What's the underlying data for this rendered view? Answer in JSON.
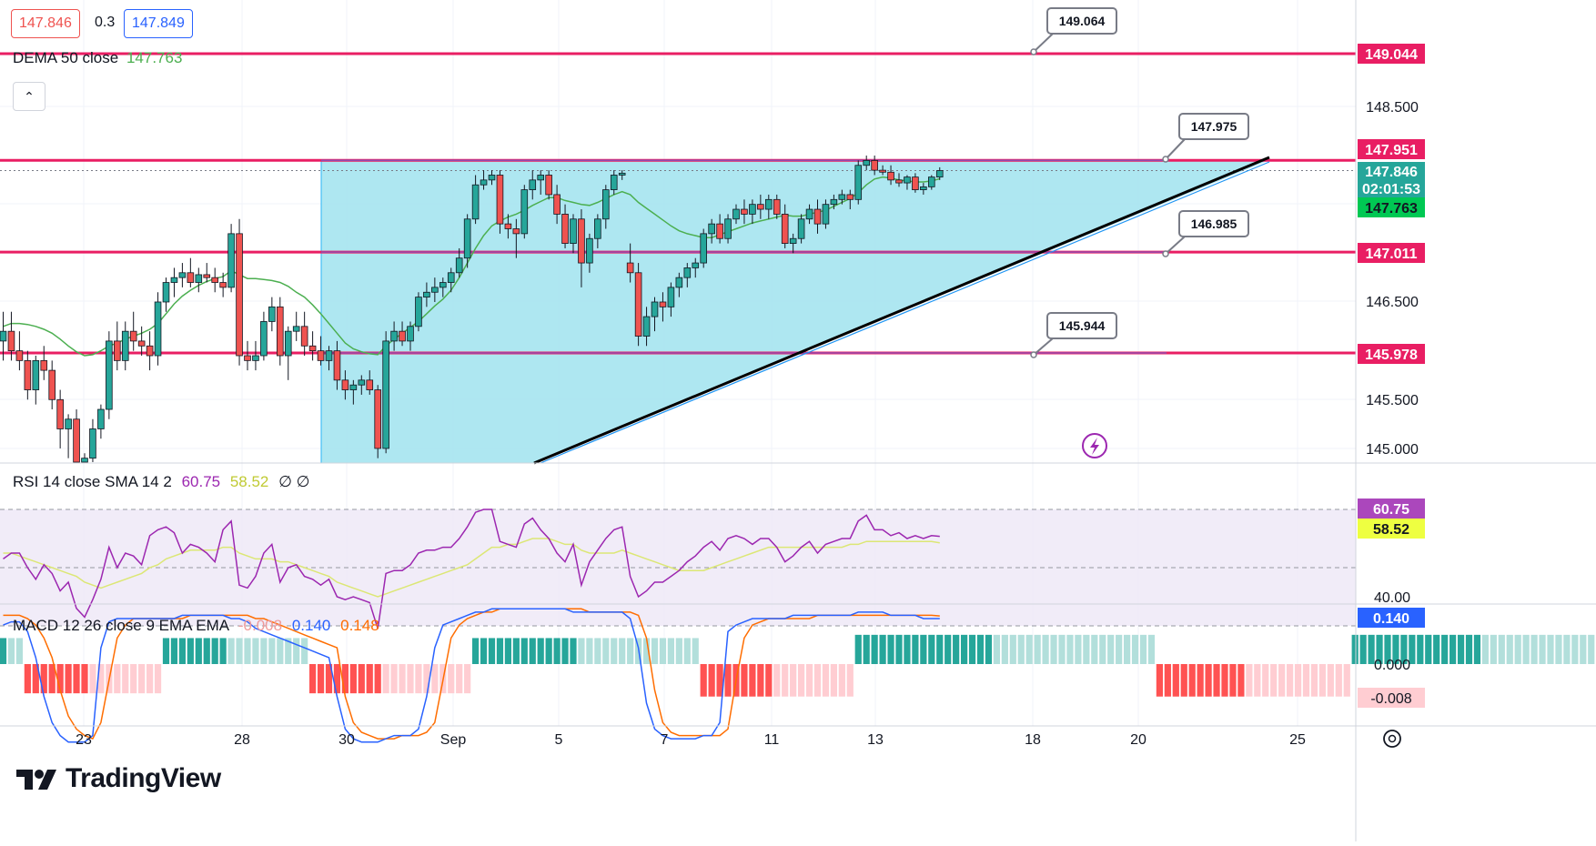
{
  "header": {
    "bid": "147.846",
    "spread": "0.3",
    "ask": "147.849",
    "dema_label": "DEMA 50 close",
    "dema_value": "147.763",
    "collapse_glyph": "⌃"
  },
  "colors": {
    "up": "#26a69a",
    "down": "#ef5350",
    "level": "#e91e63",
    "fill": "#a5e4ef",
    "dema": "#4caf50",
    "rsi": "#9c27b0",
    "rsi_ma": "#dce775",
    "macd": "#2962ff",
    "signal": "#ff6d00"
  },
  "price_axis": {
    "ticks": [
      "148.500",
      "146.500",
      "145.500",
      "145.000"
    ],
    "labels": [
      {
        "text": "149.044",
        "kind": "level"
      },
      {
        "text": "147.951",
        "kind": "level"
      },
      {
        "text": "147.846",
        "kind": "last"
      },
      {
        "text": "02:01:53",
        "kind": "countdown"
      },
      {
        "text": "147.763",
        "kind": "dema"
      },
      {
        "text": "147.011",
        "kind": "level"
      },
      {
        "text": "145.978",
        "kind": "level"
      }
    ]
  },
  "callouts": [
    "149.064",
    "147.975",
    "146.985",
    "145.944"
  ],
  "rsi_panel": {
    "legend": "RSI 14 close SMA 14 2",
    "rsi_value": "60.75",
    "ma_value": "58.52",
    "extra": "∅ ∅",
    "tick": "40.00",
    "rsi_label": "60.75",
    "ma_label": "58.52"
  },
  "macd_panel": {
    "legend": "MACD 12 26 close 9 EMA EMA",
    "hist_value": "-0.008",
    "macd_value": "0.140",
    "signal_value": "0.148",
    "tick": "0.000",
    "macd_label": "0.140",
    "hist_label": "-0.008"
  },
  "time_axis": [
    "23",
    "28",
    "30",
    "Sep",
    "5",
    "7",
    "11",
    "13",
    "18",
    "20",
    "25"
  ],
  "branding": {
    "name": "TradingView"
  },
  "icons": {
    "lightning": "lightning-icon",
    "settings": "settings-icon",
    "logo": "tradingview-logo-icon"
  },
  "chart_data": {
    "type": "candlestick",
    "symbol_pair_levels": {
      "horizontal_levels": [
        149.044,
        147.951,
        147.011,
        145.978
      ],
      "trend_apex": 147.951
    },
    "candles": [
      [
        146.1,
        146.4,
        145.9,
        146.2
      ],
      [
        146.2,
        146.4,
        145.9,
        146.0
      ],
      [
        146.0,
        146.2,
        145.8,
        145.9
      ],
      [
        145.9,
        146.0,
        145.5,
        145.6
      ],
      [
        145.6,
        145.95,
        145.45,
        145.9
      ],
      [
        145.9,
        146.05,
        145.7,
        145.8
      ],
      [
        145.8,
        145.9,
        145.4,
        145.5
      ],
      [
        145.5,
        145.6,
        145.0,
        145.2
      ],
      [
        145.2,
        145.35,
        144.9,
        145.3
      ],
      [
        145.3,
        145.4,
        144.6,
        144.8
      ],
      [
        144.8,
        144.95,
        144.5,
        144.9
      ],
      [
        144.9,
        145.3,
        144.8,
        145.2
      ],
      [
        145.2,
        145.45,
        145.1,
        145.4
      ],
      [
        145.4,
        146.2,
        145.3,
        146.1
      ],
      [
        146.1,
        146.3,
        145.8,
        145.9
      ],
      [
        145.9,
        146.3,
        145.8,
        146.2
      ],
      [
        146.2,
        146.4,
        146.0,
        146.1
      ],
      [
        146.1,
        146.25,
        145.95,
        146.05
      ],
      [
        146.05,
        146.2,
        145.8,
        145.95
      ],
      [
        145.95,
        146.6,
        145.85,
        146.5
      ],
      [
        146.5,
        146.75,
        146.4,
        146.7
      ],
      [
        146.7,
        146.85,
        146.55,
        146.75
      ],
      [
        146.75,
        146.9,
        146.65,
        146.8
      ],
      [
        146.8,
        146.95,
        146.65,
        146.7
      ],
      [
        146.7,
        146.85,
        146.6,
        146.78
      ],
      [
        146.78,
        146.9,
        146.7,
        146.75
      ],
      [
        146.75,
        146.85,
        146.6,
        146.7
      ],
      [
        146.7,
        146.8,
        146.55,
        146.65
      ],
      [
        146.65,
        147.3,
        146.6,
        147.2
      ],
      [
        147.2,
        147.35,
        145.85,
        145.95
      ],
      [
        145.95,
        146.1,
        145.8,
        145.9
      ],
      [
        145.9,
        146.1,
        145.8,
        145.95
      ],
      [
        145.95,
        146.4,
        145.9,
        146.3
      ],
      [
        146.3,
        146.55,
        146.2,
        146.45
      ],
      [
        146.45,
        146.55,
        145.85,
        145.95
      ],
      [
        145.95,
        146.25,
        145.7,
        146.2
      ],
      [
        146.2,
        146.4,
        146.1,
        146.25
      ],
      [
        146.25,
        146.4,
        145.95,
        146.05
      ],
      [
        146.05,
        146.2,
        145.9,
        146.0
      ],
      [
        146.0,
        146.15,
        145.85,
        145.9
      ],
      [
        145.9,
        146.05,
        145.8,
        146.0
      ],
      [
        146.0,
        146.1,
        145.6,
        145.7
      ],
      [
        145.7,
        145.8,
        145.5,
        145.6
      ],
      [
        145.6,
        145.7,
        145.45,
        145.65
      ],
      [
        145.65,
        145.75,
        145.55,
        145.7
      ],
      [
        145.7,
        145.8,
        145.55,
        145.6
      ],
      [
        145.6,
        145.65,
        144.9,
        145.0
      ],
      [
        145.0,
        146.2,
        144.95,
        146.1
      ],
      [
        146.1,
        146.3,
        146.0,
        146.2
      ],
      [
        146.2,
        146.3,
        146.05,
        146.1
      ],
      [
        146.1,
        146.3,
        146.0,
        146.25
      ],
      [
        146.25,
        146.6,
        146.2,
        146.55
      ],
      [
        146.55,
        146.7,
        146.45,
        146.6
      ],
      [
        146.6,
        146.75,
        146.5,
        146.65
      ],
      [
        146.65,
        146.75,
        146.55,
        146.7
      ],
      [
        146.7,
        146.85,
        146.6,
        146.8
      ],
      [
        146.8,
        147.05,
        146.75,
        146.95
      ],
      [
        146.95,
        147.4,
        146.85,
        147.35
      ],
      [
        147.35,
        147.8,
        147.3,
        147.7
      ],
      [
        147.7,
        147.85,
        147.65,
        147.75
      ],
      [
        147.75,
        147.85,
        147.7,
        147.8
      ],
      [
        147.8,
        147.85,
        147.2,
        147.3
      ],
      [
        147.3,
        147.4,
        147.15,
        147.25
      ],
      [
        147.25,
        147.35,
        146.95,
        147.2
      ],
      [
        147.2,
        147.7,
        147.15,
        147.65
      ],
      [
        147.65,
        147.85,
        147.55,
        147.75
      ],
      [
        147.75,
        147.85,
        147.6,
        147.8
      ],
      [
        147.8,
        147.85,
        147.55,
        147.6
      ],
      [
        147.6,
        147.7,
        147.3,
        147.4
      ],
      [
        147.4,
        147.5,
        147.05,
        147.1
      ],
      [
        147.1,
        147.4,
        147.0,
        147.35
      ],
      [
        147.35,
        147.45,
        146.65,
        146.9
      ],
      [
        146.9,
        147.2,
        146.8,
        147.15
      ],
      [
        147.15,
        147.4,
        147.05,
        147.35
      ],
      [
        147.35,
        147.7,
        147.25,
        147.65
      ],
      [
        147.65,
        147.85,
        147.6,
        147.8
      ],
      [
        147.8,
        147.85,
        147.75,
        147.82
      ],
      [
        146.9,
        147.1,
        146.7,
        146.8
      ],
      [
        146.8,
        146.9,
        146.05,
        146.15
      ],
      [
        146.15,
        146.45,
        146.05,
        146.35
      ],
      [
        146.35,
        146.55,
        146.2,
        146.5
      ],
      [
        146.5,
        146.6,
        146.3,
        146.45
      ],
      [
        146.45,
        146.7,
        146.35,
        146.65
      ],
      [
        146.65,
        146.8,
        146.55,
        146.75
      ],
      [
        146.75,
        146.9,
        146.65,
        146.85
      ],
      [
        146.85,
        146.95,
        146.75,
        146.9
      ],
      [
        146.9,
        147.25,
        146.85,
        147.2
      ],
      [
        147.2,
        147.35,
        147.1,
        147.3
      ],
      [
        147.3,
        147.4,
        147.1,
        147.15
      ],
      [
        147.15,
        147.4,
        147.1,
        147.35
      ],
      [
        147.35,
        147.5,
        147.3,
        147.45
      ],
      [
        147.45,
        147.55,
        147.3,
        147.4
      ],
      [
        147.4,
        147.55,
        147.3,
        147.5
      ],
      [
        147.5,
        147.6,
        147.35,
        147.45
      ],
      [
        147.45,
        147.6,
        147.35,
        147.55
      ],
      [
        147.55,
        147.6,
        147.35,
        147.4
      ],
      [
        147.4,
        147.5,
        147.05,
        147.1
      ],
      [
        147.1,
        147.2,
        147.0,
        147.15
      ],
      [
        147.15,
        147.4,
        147.1,
        147.35
      ],
      [
        147.35,
        147.5,
        147.3,
        147.45
      ],
      [
        147.45,
        147.55,
        147.2,
        147.3
      ],
      [
        147.3,
        147.55,
        147.25,
        147.5
      ],
      [
        147.5,
        147.6,
        147.45,
        147.55
      ],
      [
        147.55,
        147.65,
        147.5,
        147.6
      ],
      [
        147.6,
        147.65,
        147.45,
        147.55
      ],
      [
        147.55,
        147.95,
        147.5,
        147.9
      ],
      [
        147.9,
        148.0,
        147.85,
        147.95
      ],
      [
        147.95,
        148.0,
        147.8,
        147.85
      ],
      [
        147.85,
        147.9,
        147.8,
        147.83
      ],
      [
        147.83,
        147.9,
        147.7,
        147.75
      ],
      [
        147.75,
        147.82,
        147.68,
        147.72
      ],
      [
        147.72,
        147.8,
        147.65,
        147.78
      ],
      [
        147.78,
        147.82,
        147.62,
        147.65
      ],
      [
        147.65,
        147.72,
        147.6,
        147.68
      ],
      [
        147.68,
        147.8,
        147.65,
        147.78
      ],
      [
        147.78,
        147.88,
        147.75,
        147.846
      ]
    ],
    "dema": [
      146.25,
      146.28,
      146.28,
      146.27,
      146.25,
      146.22,
      146.18,
      146.12,
      146.05,
      145.99,
      145.95,
      145.96,
      146.0,
      146.05,
      146.08,
      146.12,
      146.15,
      146.18,
      146.22,
      146.28,
      146.38,
      146.48,
      146.56,
      146.62,
      146.67,
      146.71,
      146.74,
      146.76,
      146.82,
      146.78,
      146.74,
      146.74,
      146.73,
      146.72,
      146.7,
      146.66,
      146.6,
      146.55,
      146.47,
      146.38,
      146.28,
      146.18,
      146.08,
      146.02,
      145.99,
      145.97,
      145.96,
      146.05,
      146.12,
      146.18,
      146.24,
      146.3,
      146.38,
      146.46,
      146.53,
      146.62,
      146.75,
      146.9,
      147.05,
      147.18,
      147.28,
      147.33,
      147.37,
      147.4,
      147.44,
      147.49,
      147.53,
      147.57,
      147.57,
      147.54,
      147.52,
      147.5,
      147.49,
      147.52,
      147.56,
      147.6,
      147.63,
      147.6,
      147.52,
      147.46,
      147.4,
      147.34,
      147.28,
      147.23,
      147.2,
      147.18,
      147.16,
      147.16,
      147.19,
      147.22,
      147.25,
      147.28,
      147.31,
      147.33,
      147.35,
      147.37,
      147.39,
      147.38,
      147.38,
      147.4,
      147.42,
      147.44,
      147.48,
      147.52,
      147.56,
      147.62,
      147.7,
      147.76,
      147.78,
      147.77,
      147.75,
      147.74,
      147.73,
      147.73,
      147.74,
      147.763
    ],
    "rsi": [
      53,
      55,
      55,
      50,
      46,
      51,
      48,
      42,
      45,
      36,
      33,
      39,
      46,
      57,
      50,
      55,
      54,
      51,
      61,
      63,
      64,
      62,
      55,
      58,
      57,
      55,
      52,
      63,
      66,
      44,
      43,
      47,
      55,
      58,
      45,
      50,
      51,
      47,
      46,
      44,
      46,
      40,
      39,
      40,
      39,
      38,
      29,
      48,
      49,
      49,
      51,
      55,
      56,
      56,
      57,
      57,
      60,
      64,
      69,
      70,
      70,
      59,
      58,
      57,
      65,
      67,
      63,
      60,
      55,
      52,
      58,
      44,
      52,
      56,
      60,
      63,
      64,
      47,
      40,
      42,
      45,
      45,
      47,
      49,
      52,
      54,
      57,
      59,
      56,
      60,
      61,
      60,
      58,
      60,
      60,
      57,
      52,
      54,
      57,
      59,
      55,
      58,
      59,
      60,
      60,
      66,
      68,
      63,
      63,
      61,
      62,
      60,
      61,
      60,
      61,
      60.75
    ],
    "rsi_ma": [
      55,
      55,
      54,
      53,
      52,
      51,
      50,
      49,
      48,
      47,
      45,
      44,
      43,
      44,
      45,
      46,
      47,
      48,
      50,
      51,
      53,
      54,
      55,
      56,
      56,
      56,
      56,
      57,
      57,
      55,
      54,
      53,
      53,
      53,
      52,
      52,
      51,
      50,
      49,
      48,
      47,
      45,
      44,
      43,
      42,
      41,
      40,
      41,
      42,
      43,
      44,
      45,
      46,
      47,
      48,
      49,
      50,
      51,
      53,
      55,
      57,
      57,
      58,
      58,
      59,
      60,
      60,
      60,
      59,
      58,
      58,
      56,
      55,
      55,
      55,
      55,
      56,
      55,
      54,
      53,
      52,
      51,
      50,
      49,
      49,
      49,
      49,
      50,
      51,
      52,
      53,
      54,
      55,
      56,
      57,
      57,
      57,
      57,
      57,
      57,
      57,
      57,
      57,
      57,
      58,
      58,
      59,
      59,
      59,
      59,
      59,
      59,
      59,
      59,
      59,
      58.52
    ],
    "macd": [
      0.12,
      0.13,
      0.13,
      0.1,
      0.02,
      -0.1,
      -0.18,
      -0.22,
      -0.24,
      -0.24,
      -0.24,
      -0.22,
      0.05,
      0.13,
      0.14,
      0.14,
      0.14,
      0.14,
      0.14,
      0.14,
      0.14,
      0.14,
      0.15,
      0.15,
      0.15,
      0.15,
      0.15,
      0.15,
      0.14,
      0.14,
      0.13,
      0.11,
      0.1,
      0.09,
      0.08,
      0.07,
      0.06,
      0.05,
      0.04,
      0.03,
      0.02,
      -0.1,
      -0.2,
      -0.23,
      -0.24,
      -0.24,
      -0.24,
      -0.23,
      -0.22,
      -0.22,
      -0.22,
      -0.2,
      -0.1,
      0.05,
      0.12,
      0.13,
      0.14,
      0.15,
      0.16,
      0.16,
      0.17,
      0.17,
      0.17,
      0.17,
      0.17,
      0.17,
      0.17,
      0.17,
      0.17,
      0.17,
      0.16,
      0.16,
      0.16,
      0.16,
      0.16,
      0.16,
      0.16,
      0.14,
      0.05,
      -0.12,
      -0.2,
      -0.22,
      -0.23,
      -0.23,
      -0.23,
      -0.23,
      -0.22,
      -0.22,
      -0.18,
      0.1,
      0.12,
      0.13,
      0.14,
      0.14,
      0.14,
      0.14,
      0.14,
      0.15,
      0.15,
      0.15,
      0.15,
      0.15,
      0.15,
      0.15,
      0.15,
      0.16,
      0.16,
      0.16,
      0.16,
      0.15,
      0.15,
      0.15,
      0.15,
      0.14,
      0.14,
      0.14
    ],
    "signal": [
      0.15,
      0.15,
      0.15,
      0.14,
      0.12,
      0.08,
      0.02,
      -0.08,
      -0.16,
      -0.2,
      -0.22,
      -0.23,
      -0.18,
      -0.05,
      0.08,
      0.12,
      0.14,
      0.14,
      0.14,
      0.14,
      0.14,
      0.14,
      0.14,
      0.15,
      0.15,
      0.15,
      0.15,
      0.15,
      0.15,
      0.15,
      0.15,
      0.14,
      0.14,
      0.13,
      0.12,
      0.11,
      0.1,
      0.09,
      0.08,
      0.07,
      0.06,
      0.05,
      -0.1,
      -0.18,
      -0.21,
      -0.22,
      -0.23,
      -0.23,
      -0.23,
      -0.22,
      -0.22,
      -0.22,
      -0.21,
      -0.18,
      -0.05,
      0.08,
      0.12,
      0.14,
      0.15,
      0.16,
      0.16,
      0.17,
      0.17,
      0.17,
      0.17,
      0.17,
      0.17,
      0.17,
      0.17,
      0.17,
      0.17,
      0.17,
      0.16,
      0.16,
      0.16,
      0.16,
      0.16,
      0.16,
      0.15,
      0.08,
      -0.08,
      -0.18,
      -0.21,
      -0.22,
      -0.22,
      -0.22,
      -0.22,
      -0.22,
      -0.22,
      -0.2,
      -0.05,
      0.08,
      0.12,
      0.13,
      0.14,
      0.14,
      0.14,
      0.14,
      0.14,
      0.14,
      0.15,
      0.15,
      0.15,
      0.15,
      0.15,
      0.15,
      0.15,
      0.15,
      0.15,
      0.15,
      0.15,
      0.15,
      0.15,
      0.15,
      0.15,
      0.148
    ],
    "hist_blocks": [
      {
        "from": 0,
        "to": 3,
        "value": 0.08
      },
      {
        "from": 3,
        "to": 20,
        "value": -0.09
      },
      {
        "from": 20,
        "to": 38,
        "value": 0.08
      },
      {
        "from": 38,
        "to": 58,
        "value": -0.09
      },
      {
        "from": 58,
        "to": 86,
        "value": 0.08
      },
      {
        "from": 86,
        "to": 105,
        "value": -0.1
      },
      {
        "from": 105,
        "to": 142,
        "value": 0.09
      },
      {
        "from": 142,
        "to": 166,
        "value": -0.1
      },
      {
        "from": 166,
        "to": 202,
        "value": 0.09
      },
      {
        "from": 202,
        "to": 207,
        "value": -0.07
      }
    ]
  }
}
